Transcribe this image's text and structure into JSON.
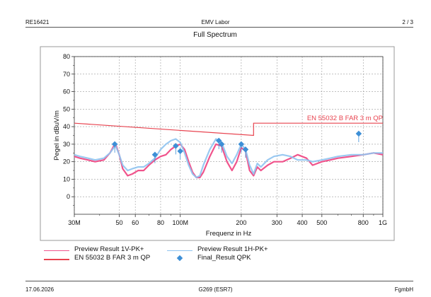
{
  "header": {
    "left": "RE16421",
    "center": "EMV Labor",
    "right": "2 / 3"
  },
  "footer": {
    "left": "17.06.2026",
    "center": "G269 (ESR7)",
    "right": "FgmbH"
  },
  "colors": {
    "preview_v": "#f0548c",
    "preview_h": "#8fc3f0",
    "limit": "#e8434f",
    "final": "#3d8fd6",
    "grid": "#9a9a9a"
  },
  "chart_data": {
    "type": "line",
    "title": "Full Spectrum",
    "xlabel": "Frequenz in Hz",
    "ylabel": "Pegel in dBuV/m",
    "x_scale": "log",
    "xlim": [
      30000000,
      1000000000
    ],
    "ylim": [
      -10,
      80
    ],
    "grid": true,
    "x_ticks": [
      {
        "value": 30000000,
        "label": "30M"
      },
      {
        "value": 50000000,
        "label": "50"
      },
      {
        "value": 60000000,
        "label": "60"
      },
      {
        "value": 80000000,
        "label": "80"
      },
      {
        "value": 100000000,
        "label": "100M"
      },
      {
        "value": 200000000,
        "label": "200"
      },
      {
        "value": 300000000,
        "label": "300"
      },
      {
        "value": 400000000,
        "label": "400"
      },
      {
        "value": 500000000,
        "label": "500"
      },
      {
        "value": 800000000,
        "label": "800"
      },
      {
        "value": 1000000000,
        "label": "1G"
      }
    ],
    "y_ticks": [
      0,
      10,
      20,
      30,
      40,
      50,
      60,
      70,
      80
    ],
    "series": [
      {
        "name": "Preview Result 1V-PK+",
        "color": "#f0548c",
        "x": [
          30,
          32,
          35,
          38,
          42,
          45,
          47,
          48,
          50,
          52,
          55,
          58,
          62,
          66,
          70,
          75,
          80,
          85,
          90,
          95,
          100,
          105,
          110,
          115,
          120,
          125,
          130,
          140,
          150,
          160,
          170,
          180,
          190,
          200,
          210,
          220,
          230,
          240,
          250,
          270,
          290,
          320,
          350,
          380,
          420,
          450,
          500,
          550,
          600,
          700,
          800,
          900,
          1000
        ],
        "y": [
          23,
          22,
          21,
          20,
          21,
          25,
          29,
          30,
          24,
          16,
          12,
          13,
          15,
          15,
          18,
          21,
          23,
          24,
          27,
          29,
          30,
          27,
          20,
          14,
          11,
          11,
          14,
          23,
          30,
          29,
          20,
          15,
          20,
          28,
          26,
          15,
          12,
          17,
          15,
          18,
          20,
          20,
          22,
          24,
          22,
          18,
          20,
          21,
          22,
          23,
          24,
          25,
          24
        ]
      },
      {
        "name": "Preview Result 1H-PK+",
        "color": "#8fc3f0",
        "x": [
          30,
          32,
          35,
          38,
          42,
          45,
          47,
          48,
          50,
          52,
          55,
          58,
          62,
          66,
          70,
          75,
          80,
          85,
          90,
          95,
          100,
          105,
          110,
          115,
          120,
          125,
          130,
          140,
          150,
          160,
          170,
          180,
          190,
          200,
          210,
          220,
          230,
          240,
          250,
          270,
          290,
          320,
          350,
          380,
          420,
          450,
          500,
          550,
          600,
          700,
          800,
          900,
          1000
        ],
        "y": [
          24,
          23,
          22,
          21,
          22,
          25,
          28,
          29,
          24,
          18,
          15,
          16,
          17,
          17,
          19,
          22,
          27,
          30,
          32,
          33,
          31,
          25,
          18,
          13,
          11,
          12,
          18,
          27,
          33,
          31,
          23,
          19,
          24,
          30,
          27,
          18,
          13,
          19,
          17,
          21,
          23,
          24,
          23,
          21,
          21,
          20,
          21,
          22,
          23,
          24,
          24,
          25,
          25
        ]
      },
      {
        "name": "EN 55032 B FAR 3 m QP",
        "color": "#e8434f",
        "x": [
          30,
          230,
          230,
          1000
        ],
        "y": [
          42,
          35,
          42,
          42
        ]
      },
      {
        "name": "Final_Result QPK",
        "color": "#3d8fd6",
        "type": "scatter",
        "x": [
          47.5,
          75,
          95,
          100,
          155,
          160,
          200,
          210,
          760
        ],
        "y": [
          30,
          24,
          29,
          26,
          32,
          30,
          30,
          27,
          36
        ]
      }
    ],
    "annotations": [
      {
        "text": "EN 55032 B FAR 3 m QP"
      }
    ],
    "legend": [
      {
        "label": "Preview Result 1V-PK+",
        "kind": "line",
        "color": "#f0548c"
      },
      {
        "label": "Preview Result 1H-PK+",
        "kind": "line",
        "color": "#8fc3f0"
      },
      {
        "label": "EN 55032 B FAR 3 m QP",
        "kind": "line",
        "color": "#e8434f"
      },
      {
        "label": "Final_Result QPK",
        "kind": "marker",
        "color": "#3d8fd6"
      }
    ]
  }
}
